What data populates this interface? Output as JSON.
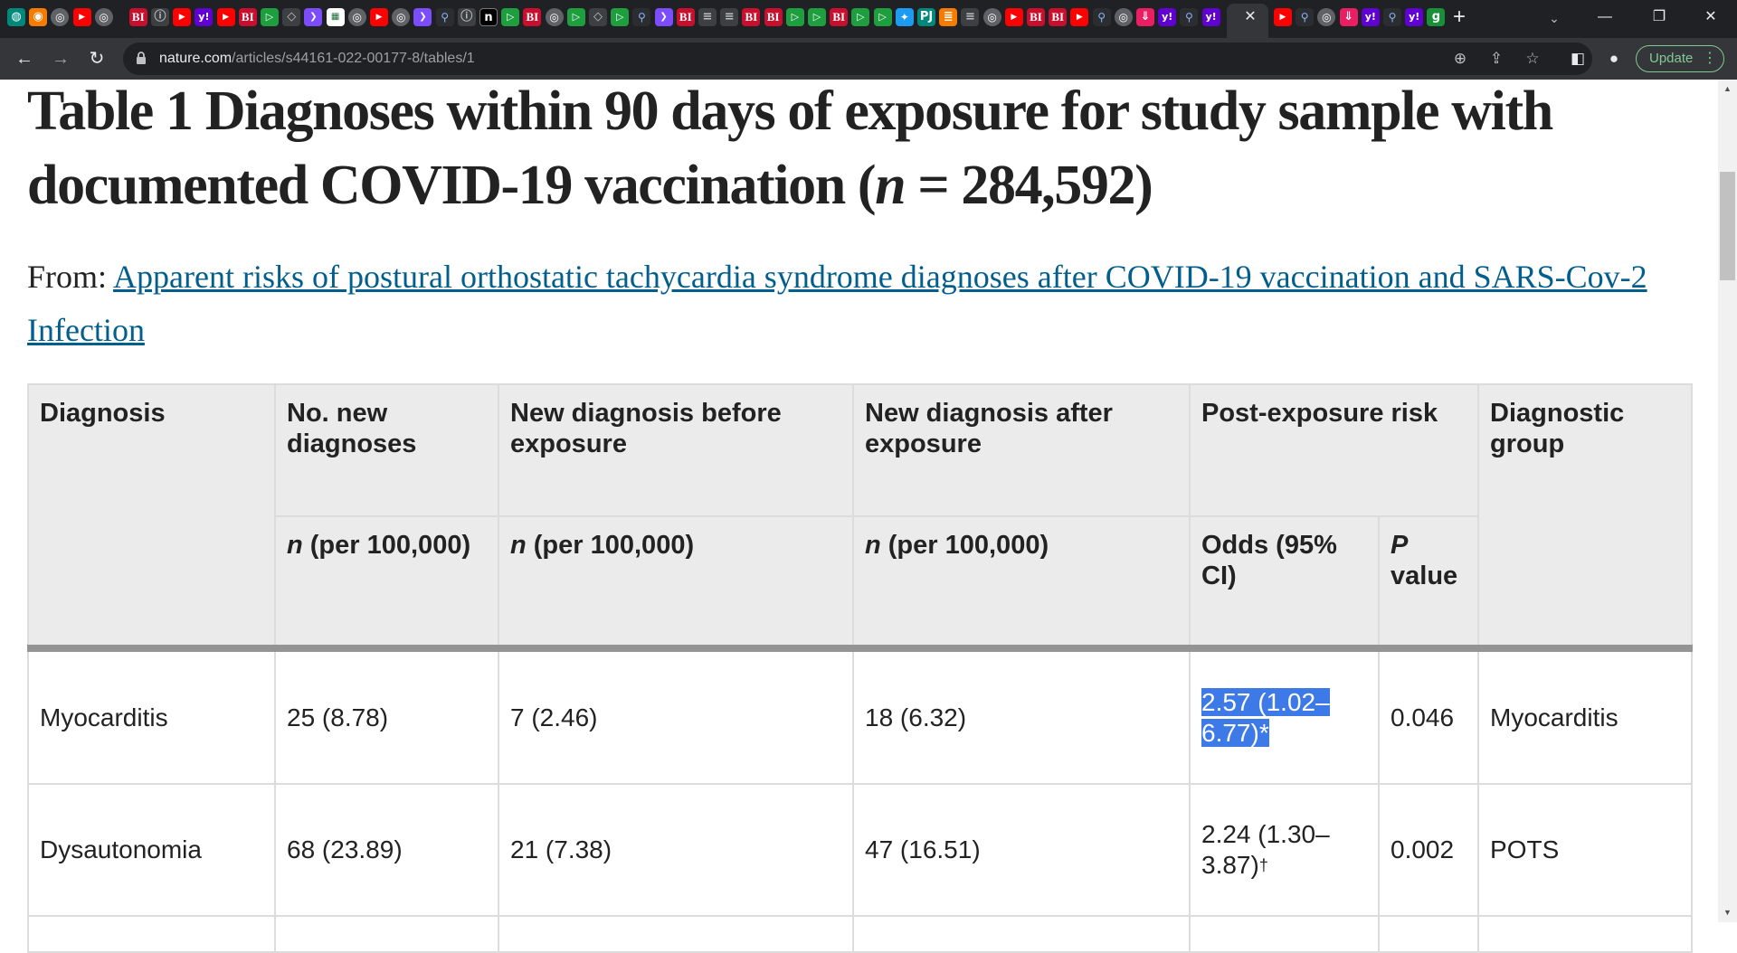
{
  "browser": {
    "active_tab_close": "✕",
    "new_tab": "+",
    "tab_search": "⌄",
    "window_controls": {
      "minimize": "—",
      "maximize": "❐",
      "close": "✕"
    },
    "tab_icons": [
      {
        "name": "globe-tab-icon",
        "glyph": "◍",
        "cls": "ico-teal"
      },
      {
        "name": "basketball-tab-icon",
        "glyph": "◉",
        "cls": "ico-ora"
      },
      {
        "name": "chrome-tab-icon",
        "glyph": "◎",
        "cls": "ico-globe"
      },
      {
        "name": "youtube-tab-icon",
        "glyph": "▶",
        "cls": "ico-yt"
      },
      {
        "name": "chrome-tab-icon",
        "glyph": "◎",
        "cls": "ico-globe"
      },
      {
        "name": "business-insider-tab-icon",
        "glyph": "BI",
        "cls": "ico-bi"
      },
      {
        "name": "green-info-tab-icon",
        "glyph": "ⓘ",
        "cls": "ico-gray"
      },
      {
        "name": "youtube-tab-icon",
        "glyph": "▶",
        "cls": "ico-yt"
      },
      {
        "name": "yahoo-tab-icon",
        "glyph": "y!",
        "cls": "ico-yh"
      },
      {
        "name": "youtube-tab-icon",
        "glyph": "▶",
        "cls": "ico-yt"
      },
      {
        "name": "business-insider-tab-icon",
        "glyph": "BI",
        "cls": "ico-bi"
      },
      {
        "name": "play-tab-icon",
        "glyph": "▷",
        "cls": "ico-play"
      },
      {
        "name": "shield-tab-icon",
        "glyph": "◇",
        "cls": "ico-gray"
      },
      {
        "name": "arrow-tab-icon",
        "glyph": "❯",
        "cls": "ico-arr"
      },
      {
        "name": "spreadsheet-tab-icon",
        "glyph": "▦",
        "cls": "ico-doc"
      },
      {
        "name": "chrome-tab-icon",
        "glyph": "◎",
        "cls": "ico-globe"
      },
      {
        "name": "youtube-tab-icon",
        "glyph": "▶",
        "cls": "ico-yt"
      },
      {
        "name": "chrome-tab-icon",
        "glyph": "◎",
        "cls": "ico-globe"
      },
      {
        "name": "arrow-tab-icon",
        "glyph": "❯",
        "cls": "ico-arr"
      },
      {
        "name": "search-tab-icon",
        "glyph": "⚲",
        "cls": "ico-srch"
      },
      {
        "name": "green-info-tab-icon",
        "glyph": "ⓘ",
        "cls": "ico-gray"
      },
      {
        "name": "notion-tab-icon",
        "glyph": "n",
        "cls": "ico-n"
      },
      {
        "name": "play-tab-icon",
        "glyph": "▷",
        "cls": "ico-play"
      },
      {
        "name": "business-insider-tab-icon",
        "glyph": "BI",
        "cls": "ico-bi"
      },
      {
        "name": "chrome-tab-icon",
        "glyph": "◎",
        "cls": "ico-globe"
      },
      {
        "name": "play-tab-icon",
        "glyph": "▷",
        "cls": "ico-play"
      },
      {
        "name": "shield-tab-icon",
        "glyph": "◇",
        "cls": "ico-gray"
      },
      {
        "name": "play-tab-icon",
        "glyph": "▷",
        "cls": "ico-play"
      },
      {
        "name": "search-tab-icon",
        "glyph": "⚲",
        "cls": "ico-srch"
      },
      {
        "name": "arrow-tab-icon",
        "glyph": "❯",
        "cls": "ico-arr"
      },
      {
        "name": "business-insider-tab-icon",
        "glyph": "BI",
        "cls": "ico-bi"
      },
      {
        "name": "document-tab-icon",
        "glyph": "≡",
        "cls": "ico-gray"
      },
      {
        "name": "document-tab-icon",
        "glyph": "≡",
        "cls": "ico-gray"
      },
      {
        "name": "business-insider-tab-icon",
        "glyph": "BI",
        "cls": "ico-bi"
      },
      {
        "name": "business-insider-tab-icon",
        "glyph": "BI",
        "cls": "ico-bi"
      },
      {
        "name": "play-tab-icon",
        "glyph": "▷",
        "cls": "ico-play"
      },
      {
        "name": "play-tab-icon",
        "glyph": "▷",
        "cls": "ico-play"
      },
      {
        "name": "business-insider-tab-icon",
        "glyph": "BI",
        "cls": "ico-bi"
      },
      {
        "name": "play-tab-icon",
        "glyph": "▷",
        "cls": "ico-play"
      },
      {
        "name": "play-tab-icon",
        "glyph": "▷",
        "cls": "ico-play"
      },
      {
        "name": "twitter-tab-icon",
        "glyph": "✦",
        "cls": "ico-tw"
      },
      {
        "name": "pycharm-tab-icon",
        "glyph": "PJ",
        "cls": "ico-teal"
      },
      {
        "name": "bookmark-tab-icon",
        "glyph": "≣",
        "cls": "ico-ora"
      },
      {
        "name": "document-tab-icon",
        "glyph": "≡",
        "cls": "ico-gray"
      },
      {
        "name": "chrome-tab-icon",
        "glyph": "◎",
        "cls": "ico-globe"
      },
      {
        "name": "youtube-tab-icon",
        "glyph": "▶",
        "cls": "ico-yt"
      },
      {
        "name": "business-insider-tab-icon",
        "glyph": "BI",
        "cls": "ico-bi"
      },
      {
        "name": "business-insider-tab-icon",
        "glyph": "BI",
        "cls": "ico-bi"
      },
      {
        "name": "youtube-tab-icon",
        "glyph": "▶",
        "cls": "ico-yt"
      },
      {
        "name": "search-tab-icon",
        "glyph": "⚲",
        "cls": "ico-srch"
      },
      {
        "name": "chrome-tab-icon",
        "glyph": "◎",
        "cls": "ico-globe"
      },
      {
        "name": "download-tab-icon",
        "glyph": "⇓",
        "cls": "ico-pnk"
      },
      {
        "name": "yahoo-tab-icon",
        "glyph": "y!",
        "cls": "ico-yh"
      },
      {
        "name": "search-tab-icon",
        "glyph": "⚲",
        "cls": "ico-srch"
      },
      {
        "name": "yahoo-tab-icon",
        "glyph": "y!",
        "cls": "ico-yh"
      },
      {
        "name": "grammarly-tab-icon",
        "glyph": "g",
        "cls": "ico-g"
      }
    ]
  },
  "toolbar": {
    "back": "←",
    "forward": "→",
    "reload": "↻",
    "lock": "🔒",
    "url_domain": "nature.com",
    "url_path": "/articles/s44161-022-00177-8/tables/1",
    "zoom": "⊕",
    "share": "⇪",
    "bookmark_star": "☆",
    "side_panel": "◧",
    "profile": "●",
    "update_label": "Update",
    "menu": "⋮"
  },
  "page": {
    "title_part1": "Table 1 Diagnoses within 90  days of exposure for study sample with documented COVID-19 vaccination (",
    "title_n": "n",
    "title_part2": "  =  284,592)",
    "from_label": "From: ",
    "source_link": "Apparent risks of postural orthostatic tachycardia syndrome diagnoses after COVID-19 vaccination and SARS-Cov-2 Infection"
  },
  "table": {
    "headers": {
      "diagnosis": "Diagnosis",
      "new_diagnoses": "No. new diagnoses",
      "before": "New diagnosis before exposure",
      "after": "New diagnosis after exposure",
      "risk": "Post-exposure risk",
      "group": "Diagnostic group"
    },
    "subheaders": {
      "n_italic": "n",
      "per": " (per 100,000)",
      "odds": "Odds (95% CI)",
      "p_italic": "P",
      "p_value": " value"
    },
    "rows": [
      {
        "diagnosis": "Myocarditis",
        "new": "25 (8.78)",
        "before": "7 (2.46)",
        "after": "18 (6.32)",
        "odds": "2.57 (1.02–6.77)",
        "odds_mark": "*",
        "p": "0.046",
        "group": "Myocarditis"
      },
      {
        "diagnosis": "Dysautonomia",
        "new": "68 (23.89)",
        "before": "21 (7.38)",
        "after": "47 (16.51)",
        "odds": "2.24 (1.30–3.87)",
        "odds_mark": "†",
        "p": "0.002",
        "group": "POTS"
      }
    ]
  },
  "scrollbar": {
    "up": "▲",
    "down": "▼"
  }
}
